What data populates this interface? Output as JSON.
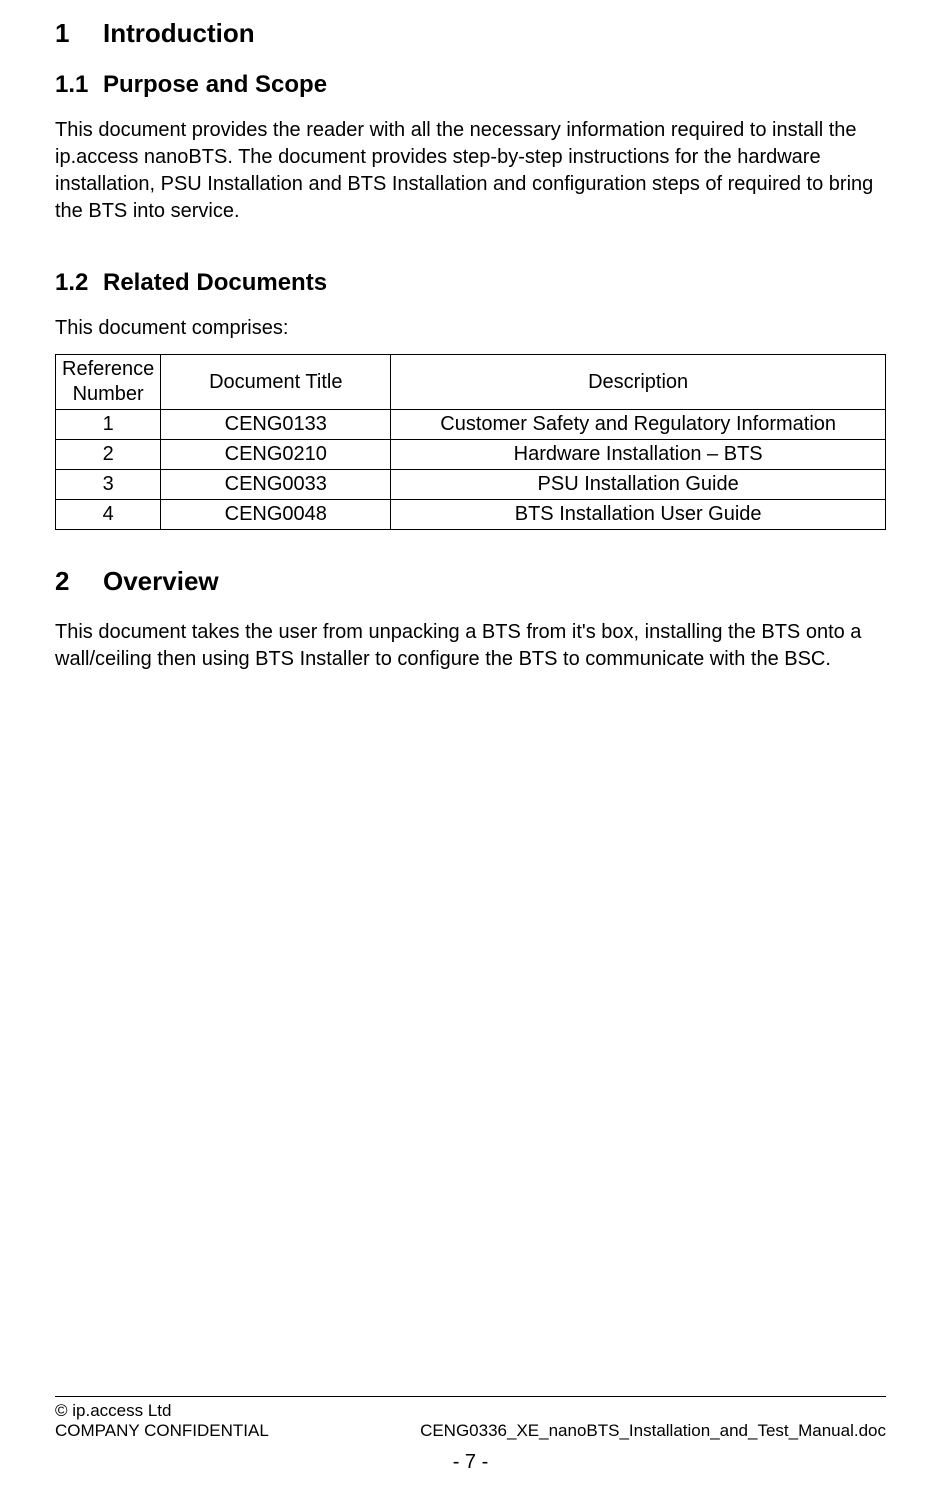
{
  "section1": {
    "number": "1",
    "title": "Introduction",
    "sub1": {
      "number": "1.1",
      "title": "Purpose and Scope",
      "para": "This document provides the reader with all the necessary information required to install the ip.access nanoBTS. The document provides step-by-step instructions for the hardware installation, PSU Installation and BTS Installation and configuration steps of required to bring the BTS into service."
    },
    "sub2": {
      "number": "1.2",
      "title": "Related Documents",
      "para": "This document comprises:"
    }
  },
  "table": {
    "headers": {
      "ref_line1": "Reference",
      "ref_line2": "Number",
      "title": "Document Title",
      "desc": "Description"
    },
    "rows": [
      {
        "ref": "1",
        "title": "CENG0133",
        "desc": "Customer Safety and Regulatory Information"
      },
      {
        "ref": "2",
        "title": "CENG0210",
        "desc": "Hardware Installation – BTS"
      },
      {
        "ref": "3",
        "title": "CENG0033",
        "desc": "PSU Installation Guide"
      },
      {
        "ref": "4",
        "title": "CENG0048",
        "desc": "BTS Installation User Guide"
      }
    ]
  },
  "section2": {
    "number": "2",
    "title": "Overview",
    "para": "This document takes the user from unpacking a BTS from it's box, installing the BTS onto a wall/ceiling then using BTS Installer to configure the BTS to communicate with the BSC."
  },
  "footer": {
    "copyright": "© ip.access Ltd",
    "confidential": "COMPANY CONFIDENTIAL",
    "filename": "CENG0336_XE_nanoBTS_Installation_and_Test_Manual.doc",
    "page": "- 7 -"
  }
}
